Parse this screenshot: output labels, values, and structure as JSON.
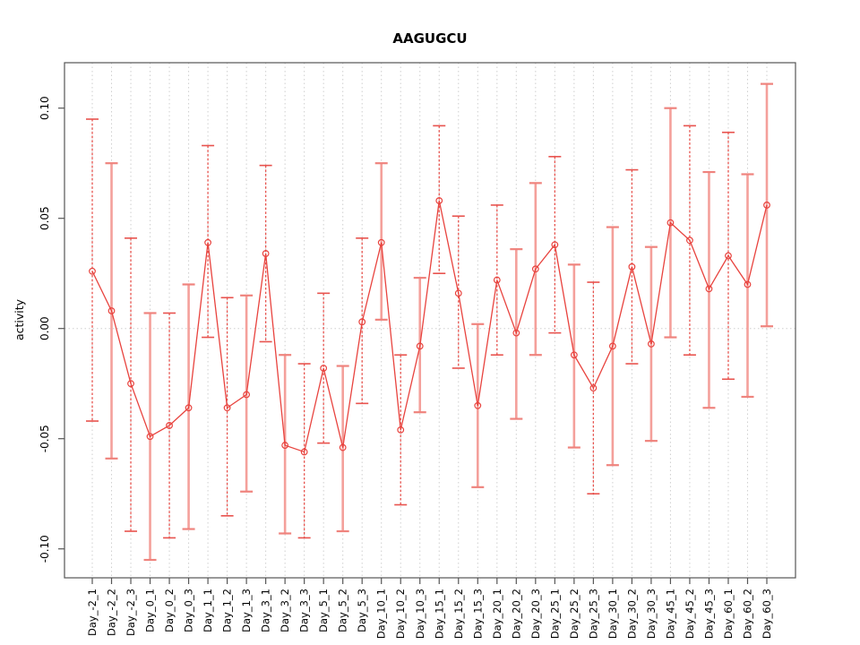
{
  "chart_data": {
    "type": "line",
    "title": "AAGUGCU",
    "xlabel": "",
    "ylabel": "activity",
    "ylim": [
      -0.113,
      0.121
    ],
    "grid": "dotted vertical gridline at every category; dotted horizontal line at 0.00",
    "legend_position": "none",
    "point_marker": "open-circle",
    "y_ticks": {
      "values": [
        0.1,
        0.05,
        0.0,
        -0.05,
        -0.1
      ],
      "labels": [
        "0.10",
        "0.05",
        "0.00",
        "-0.05",
        "-0.10"
      ]
    },
    "categories": [
      "Day_-2_1",
      "Day_-2_2",
      "Day_-2_3",
      "Day_0_1",
      "Day_0_2",
      "Day_0_3",
      "Day_1_1",
      "Day_1_2",
      "Day_1_3",
      "Day_3_1",
      "Day_3_2",
      "Day_3_3",
      "Day_5_1",
      "Day_5_2",
      "Day_5_3",
      "Day_10_1",
      "Day_10_2",
      "Day_10_3",
      "Day_15_1",
      "Day_15_2",
      "Day_15_3",
      "Day_20_1",
      "Day_20_2",
      "Day_20_3",
      "Day_25_1",
      "Day_25_2",
      "Day_25_3",
      "Day_30_1",
      "Day_30_2",
      "Day_30_3",
      "Day_45_1",
      "Day_45_2",
      "Day_45_3",
      "Day_60_1",
      "Day_60_2",
      "Day_60_3"
    ],
    "series": [
      {
        "name": "activity",
        "values": [
          0.026,
          0.008,
          -0.025,
          -0.049,
          -0.044,
          -0.036,
          0.039,
          -0.036,
          -0.03,
          0.034,
          -0.053,
          -0.056,
          -0.018,
          -0.054,
          0.003,
          0.039,
          -0.046,
          -0.008,
          0.058,
          0.016,
          -0.035,
          0.022,
          -0.002,
          0.027,
          0.038,
          -0.012,
          -0.027,
          -0.008,
          0.028,
          -0.007,
          0.048,
          0.04,
          0.018,
          0.033,
          0.02,
          0.056
        ],
        "error_low": [
          -0.042,
          -0.059,
          -0.092,
          -0.105,
          -0.095,
          -0.091,
          -0.004,
          -0.085,
          -0.074,
          -0.006,
          -0.093,
          -0.095,
          -0.052,
          -0.092,
          -0.034,
          0.004,
          -0.08,
          -0.038,
          0.025,
          -0.018,
          -0.072,
          -0.012,
          -0.041,
          -0.012,
          -0.002,
          -0.054,
          -0.075,
          -0.062,
          -0.016,
          -0.051,
          -0.004,
          -0.012,
          -0.036,
          -0.023,
          -0.031,
          0.001
        ],
        "error_high": [
          0.095,
          0.075,
          0.041,
          0.007,
          0.007,
          0.02,
          0.083,
          0.014,
          0.015,
          0.074,
          -0.012,
          -0.016,
          0.016,
          -0.017,
          0.041,
          0.075,
          -0.012,
          0.023,
          0.092,
          0.051,
          0.002,
          0.056,
          0.036,
          0.066,
          0.078,
          0.029,
          0.021,
          0.046,
          0.072,
          0.037,
          0.1,
          0.092,
          0.071,
          0.089,
          0.07,
          0.111
        ],
        "error_bar_styles": [
          "dashed",
          "solid",
          "dashed",
          "solid",
          "dashed",
          "solid",
          "dashed",
          "dashed",
          "solid",
          "dashed",
          "solid",
          "dashed",
          "dashed",
          "solid",
          "dashed",
          "solid",
          "dashed",
          "solid",
          "dashed",
          "dashed",
          "solid",
          "dashed",
          "solid",
          "solid",
          "dashed",
          "solid",
          "dashed",
          "solid",
          "dashed",
          "solid",
          "solid",
          "dashed",
          "solid",
          "dashed",
          "solid",
          "solid"
        ]
      }
    ],
    "colors": {
      "series_line": "#e8433e",
      "point_stroke": "#e8433e",
      "error_bar_solid": "#f4a09b",
      "error_bar_solid_cap": "#ef837d",
      "error_bar_dashed": "#e8534e",
      "gridline": "#cfcfcf",
      "frame": "#555555",
      "text": "#000000",
      "background": "#ffffff"
    }
  }
}
